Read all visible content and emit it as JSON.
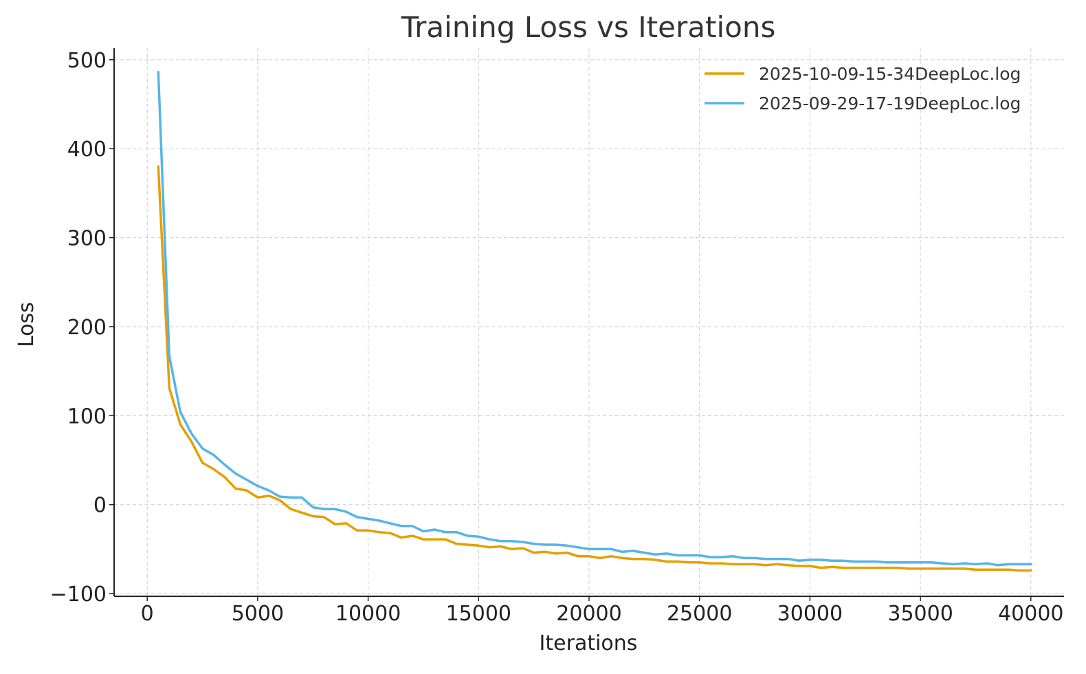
{
  "chart_data": {
    "type": "line",
    "title": "Training Loss vs Iterations",
    "xlabel": "Iterations",
    "ylabel": "Loss",
    "xlim": [
      -1500,
      41500
    ],
    "ylim": [
      -103,
      513
    ],
    "xticks": [
      0,
      5000,
      10000,
      15000,
      20000,
      25000,
      30000,
      35000,
      40000
    ],
    "yticks": [
      -100,
      0,
      100,
      200,
      300,
      400,
      500
    ],
    "grid": true,
    "legend_position": "top-right",
    "series": [
      {
        "name": "2025-10-09-15-34DeepLoc.log",
        "color": "#E69F00",
        "x": [
          500,
          1000,
          1500,
          2000,
          2500,
          3000,
          3500,
          4000,
          4500,
          5000,
          5500,
          6000,
          6500,
          7000,
          7500,
          8000,
          8500,
          9000,
          9500,
          10000,
          10500,
          11000,
          11500,
          12000,
          12500,
          13000,
          13500,
          14000,
          14500,
          15000,
          15500,
          16000,
          16500,
          17000,
          17500,
          18000,
          18500,
          19000,
          19500,
          20000,
          20500,
          21000,
          21500,
          22000,
          22500,
          23000,
          23500,
          24000,
          24500,
          25000,
          25500,
          26000,
          26500,
          27000,
          27500,
          28000,
          28500,
          29000,
          29500,
          30000,
          30500,
          31000,
          31500,
          32000,
          32500,
          33000,
          33500,
          34000,
          34500,
          35000,
          35500,
          36000,
          36500,
          37000,
          37500,
          38000,
          38500,
          39000,
          39500,
          40000
        ],
        "y": [
          380,
          131,
          90,
          71,
          47,
          40,
          31,
          18,
          16,
          8,
          10,
          5,
          -5,
          -9,
          -13,
          -14,
          -22,
          -21,
          -29,
          -29,
          -31,
          -32,
          -37,
          -35,
          -39,
          -39,
          -39,
          -44,
          -45,
          -46,
          -48,
          -47,
          -50,
          -49,
          -54,
          -53,
          -55,
          -54,
          -58,
          -58,
          -60,
          -58,
          -60,
          -61,
          -61,
          -62,
          -64,
          -64,
          -65,
          -65,
          -66,
          -66,
          -67,
          -67,
          -67,
          -68,
          -67,
          -68,
          -69,
          -69,
          -71,
          -70,
          -71,
          -71,
          -71,
          -71,
          -71,
          -71,
          -72,
          -72,
          -72,
          -72,
          -72,
          -72,
          -73,
          -73,
          -73,
          -73,
          -74,
          -74
        ]
      },
      {
        "name": "2025-09-29-17-19DeepLoc.log",
        "color": "#56B4E9",
        "x": [
          500,
          1000,
          1500,
          2000,
          2500,
          3000,
          3500,
          4000,
          4500,
          5000,
          5500,
          6000,
          6500,
          7000,
          7500,
          8000,
          8500,
          9000,
          9500,
          10000,
          10500,
          11000,
          11500,
          12000,
          12500,
          13000,
          13500,
          14000,
          14500,
          15000,
          15500,
          16000,
          16500,
          17000,
          17500,
          18000,
          18500,
          19000,
          19500,
          20000,
          20500,
          21000,
          21500,
          22000,
          22500,
          23000,
          23500,
          24000,
          24500,
          25000,
          25500,
          26000,
          26500,
          27000,
          27500,
          28000,
          28500,
          29000,
          29500,
          30000,
          30500,
          31000,
          31500,
          32000,
          32500,
          33000,
          33500,
          34000,
          34500,
          35000,
          35500,
          36000,
          36500,
          37000,
          37500,
          38000,
          38500,
          39000,
          39500,
          40000
        ],
        "y": [
          486,
          167,
          104,
          80,
          63,
          56,
          45,
          35,
          28,
          21,
          16,
          9,
          8,
          8,
          -3,
          -5,
          -5,
          -8,
          -14,
          -16,
          -18,
          -21,
          -24,
          -24,
          -30,
          -28,
          -31,
          -31,
          -35,
          -36,
          -39,
          -41,
          -41,
          -42,
          -44,
          -45,
          -45,
          -46,
          -48,
          -50,
          -50,
          -50,
          -53,
          -52,
          -54,
          -56,
          -55,
          -57,
          -57,
          -57,
          -59,
          -59,
          -58,
          -60,
          -60,
          -61,
          -61,
          -61,
          -63,
          -62,
          -62,
          -63,
          -63,
          -64,
          -64,
          -64,
          -65,
          -65,
          -65,
          -65,
          -65,
          -66,
          -67,
          -66,
          -67,
          -66,
          -68,
          -67,
          -67,
          -67
        ]
      }
    ]
  }
}
